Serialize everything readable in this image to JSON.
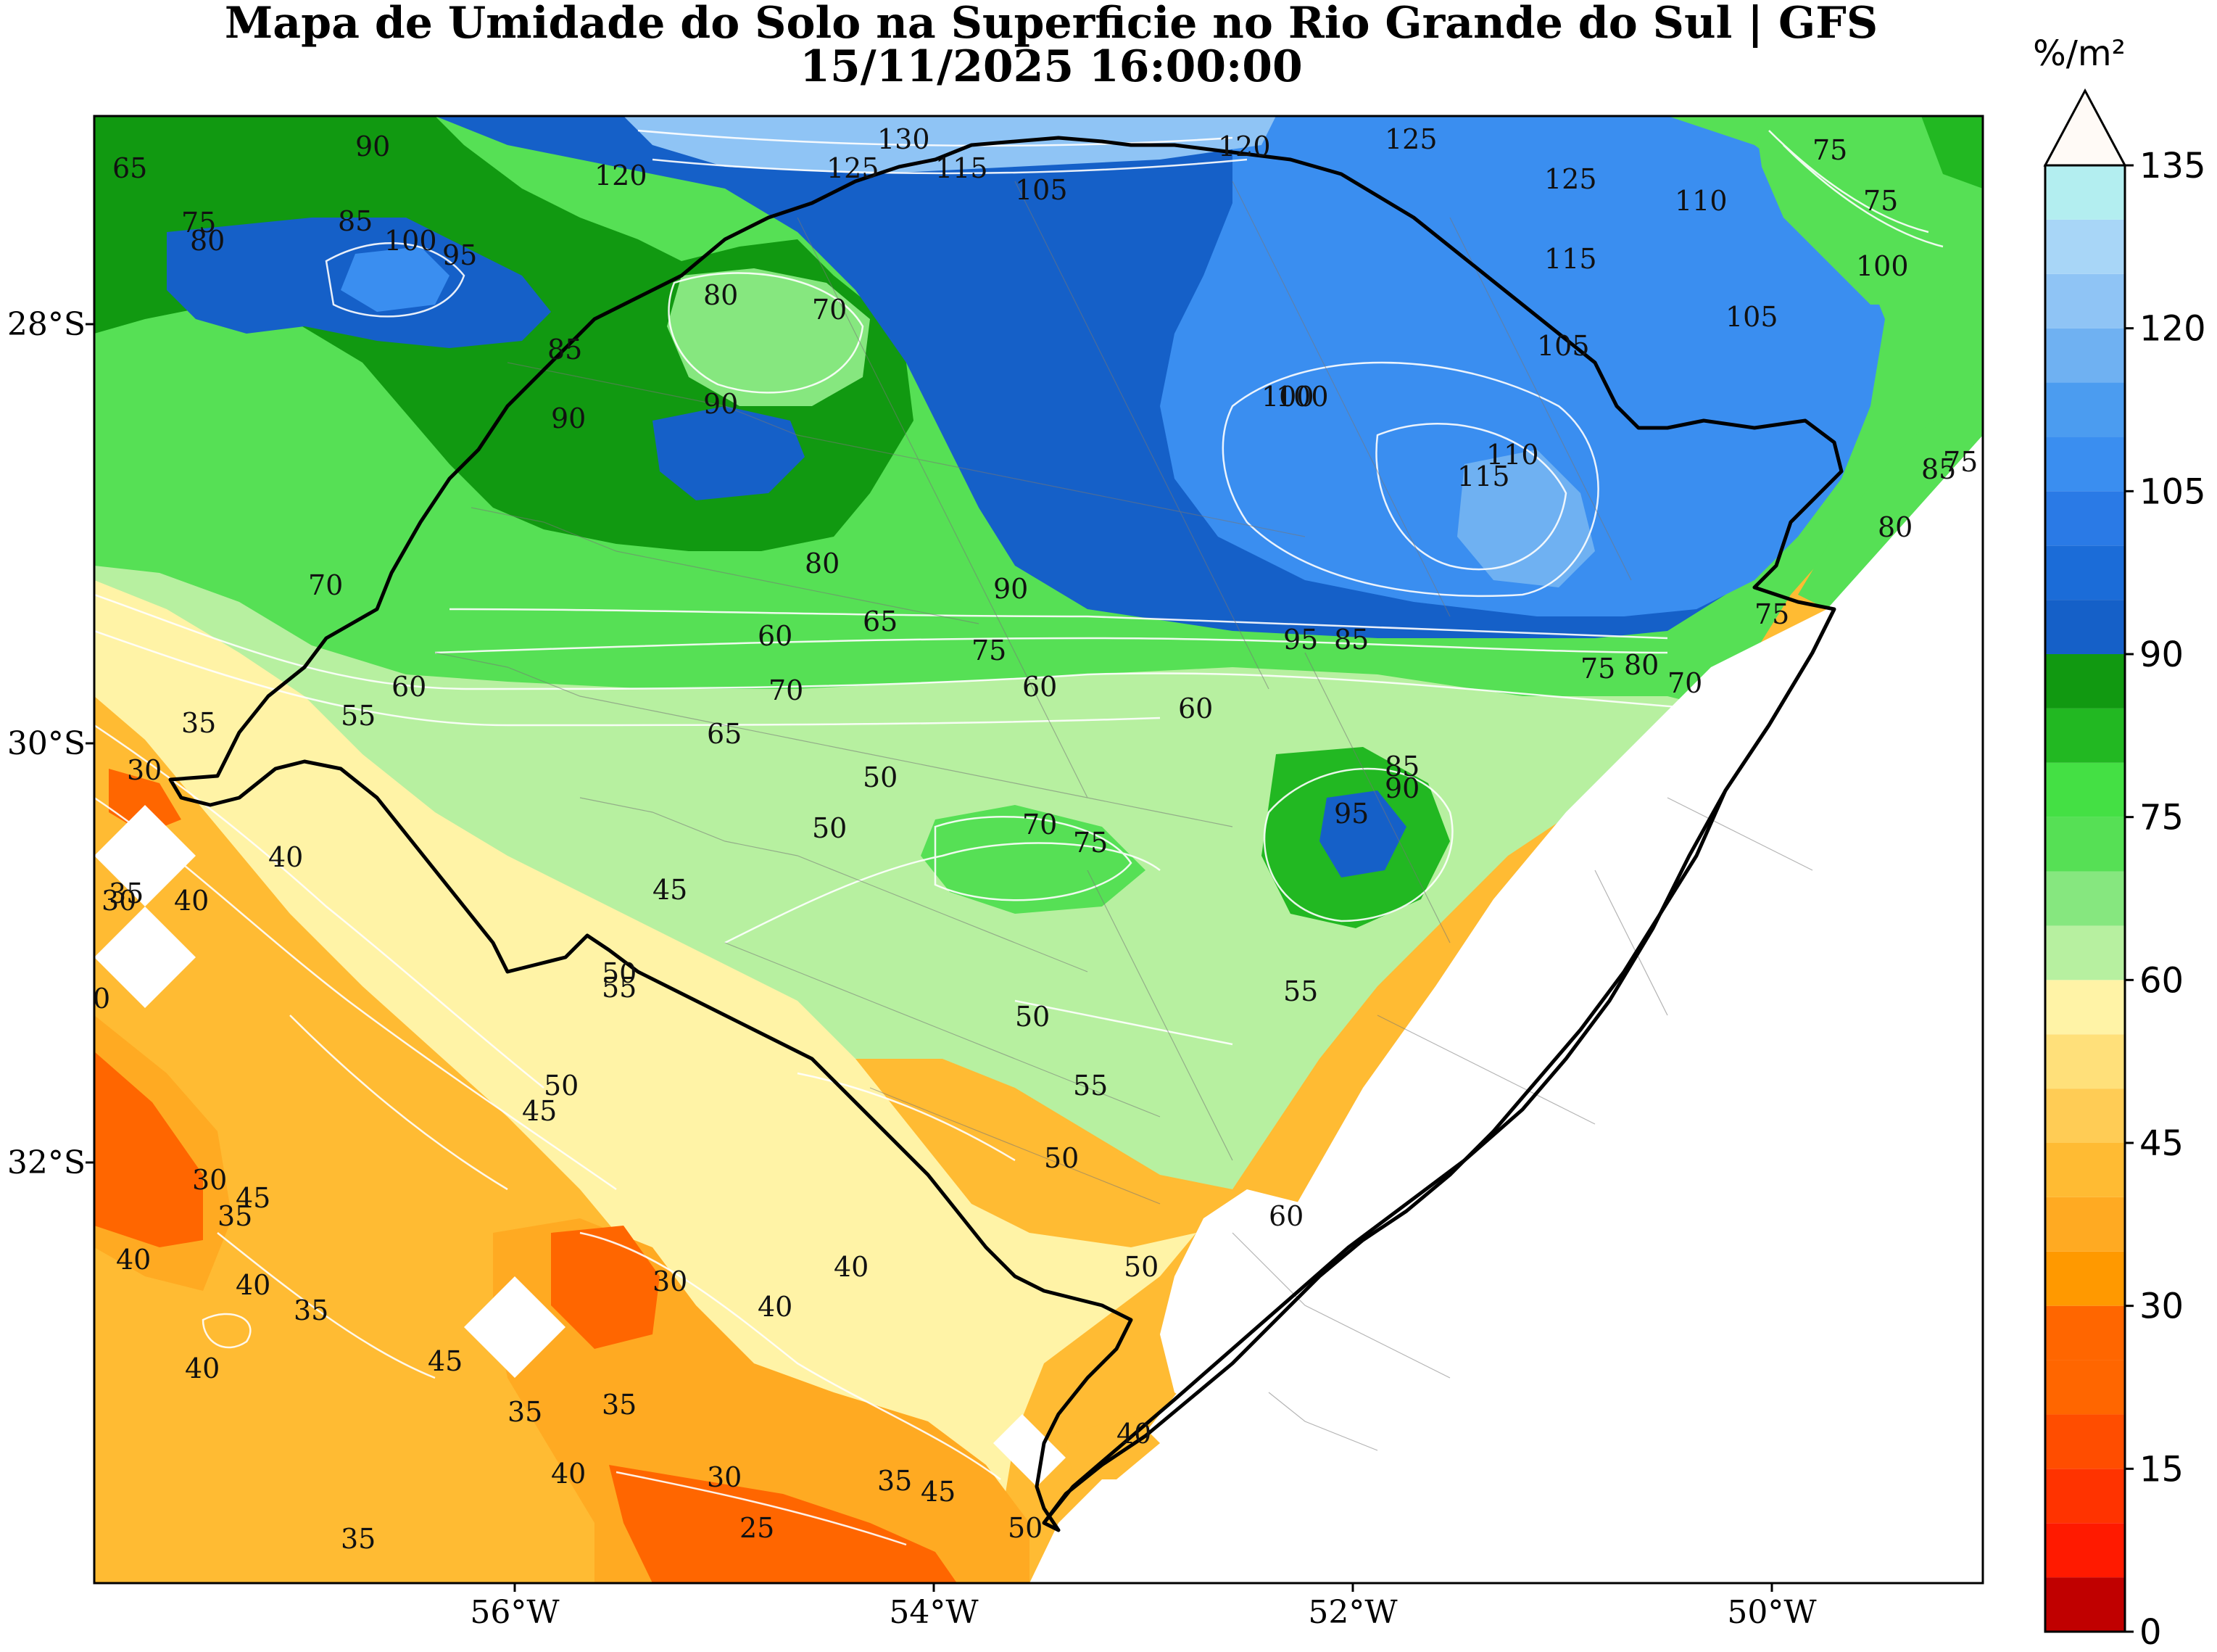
{
  "title": {
    "line1": "Mapa de Umidade do Solo na Superficie no Rio Grande do Sul | GFS",
    "line2": "15/11/2025 16:00:00"
  },
  "axes": {
    "lat_labels": [
      "28°S",
      "30°S",
      "32°S"
    ],
    "lon_labels": [
      "56°W",
      "54°W",
      "52°W",
      "50°W"
    ]
  },
  "colorbar": {
    "unit": "%/m²",
    "tick_labels": [
      "0",
      "15",
      "30",
      "45",
      "60",
      "75",
      "90",
      "105",
      "120",
      "135"
    ],
    "levels": [
      0,
      5,
      10,
      15,
      20,
      25,
      30,
      35,
      40,
      45,
      50,
      55,
      60,
      65,
      70,
      75,
      80,
      85,
      90,
      95,
      100,
      105,
      110,
      115,
      120,
      125,
      130,
      135
    ],
    "colors": [
      "#c00000",
      "#ff1a00",
      "#ff3300",
      "#ff4d00",
      "#ff6600",
      "#ff6600",
      "#ff9900",
      "#ffaa22",
      "#ffbb33",
      "#ffcc55",
      "#ffe07a",
      "#fff3a6",
      "#b7f0a0",
      "#86e77f",
      "#56e055",
      "#44e044",
      "#22b822",
      "#119911",
      "#1560c8",
      "#1b6cd8",
      "#2a7ae6",
      "#3a8ef0",
      "#4b9cf0",
      "#6fb1f2",
      "#8fc4f5",
      "#a8d6f7",
      "#b3eef0"
    ]
  },
  "contour_labels": [
    "90",
    "65",
    "70",
    "75",
    "80",
    "85",
    "100",
    "95",
    "120",
    "125",
    "130",
    "115",
    "105",
    "110",
    "60",
    "55",
    "50",
    "45",
    "40",
    "35",
    "30",
    "25",
    "0"
  ],
  "colors": {
    "boundary": "#000000",
    "municipal": "#777777",
    "contour_line": "#ffffff"
  }
}
